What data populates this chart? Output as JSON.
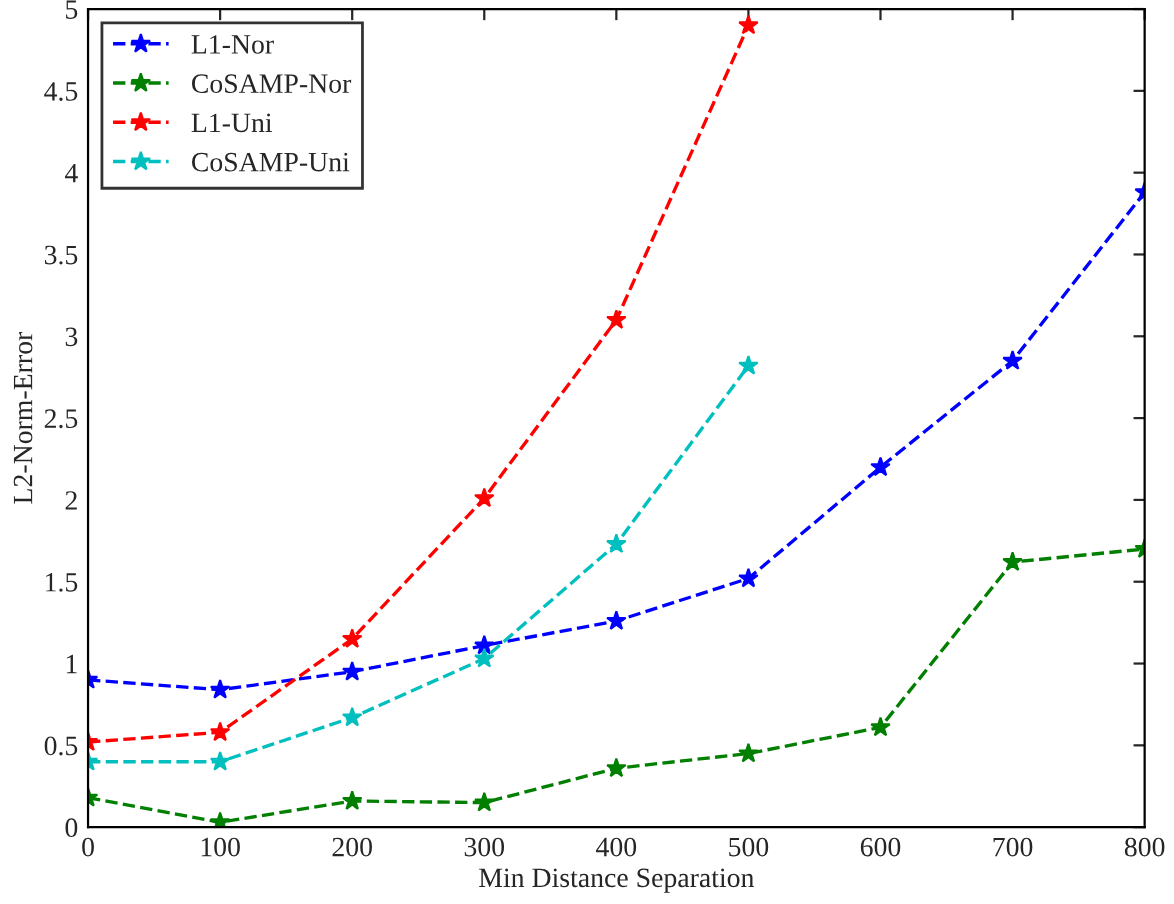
{
  "chart_data": {
    "type": "line",
    "xlabel": "Min Distance Separation",
    "ylabel": "L2-Norm-Error",
    "xlim": [
      0,
      800
    ],
    "xticks": [
      0,
      100,
      200,
      300,
      400,
      500,
      600,
      700,
      800
    ],
    "ylim": [
      0,
      5
    ],
    "yticks": [
      0,
      0.5,
      1,
      1.5,
      2,
      2.5,
      3,
      3.5,
      4,
      4.5,
      5
    ],
    "marker": "star",
    "line_style": "dashed",
    "legend": "top left",
    "grid": false,
    "series": [
      {
        "name": "L1-Nor",
        "color": "#0000ff",
        "x": [
          0,
          100,
          200,
          300,
          400,
          500,
          600,
          700,
          800
        ],
        "values": [
          0.9,
          0.84,
          0.95,
          1.11,
          1.26,
          1.52,
          2.2,
          2.85,
          3.88
        ]
      },
      {
        "name": "CoSAMP-Nor",
        "color": "#007f00",
        "x": [
          0,
          100,
          200,
          300,
          400,
          500,
          600,
          700,
          800
        ],
        "values": [
          0.18,
          0.03,
          0.16,
          0.15,
          0.36,
          0.45,
          0.61,
          1.62,
          1.7
        ]
      },
      {
        "name": "L1-Uni",
        "color": "#ff0000",
        "x": [
          0,
          100,
          200,
          300,
          400,
          500
        ],
        "values": [
          0.52,
          0.58,
          1.15,
          2.01,
          3.1,
          4.9
        ]
      },
      {
        "name": "CoSAMP-Uni",
        "color": "#00bfbf",
        "x": [
          0,
          100,
          200,
          300,
          400,
          500
        ],
        "values": [
          0.4,
          0.4,
          0.67,
          1.03,
          1.73,
          2.82
        ]
      }
    ]
  }
}
